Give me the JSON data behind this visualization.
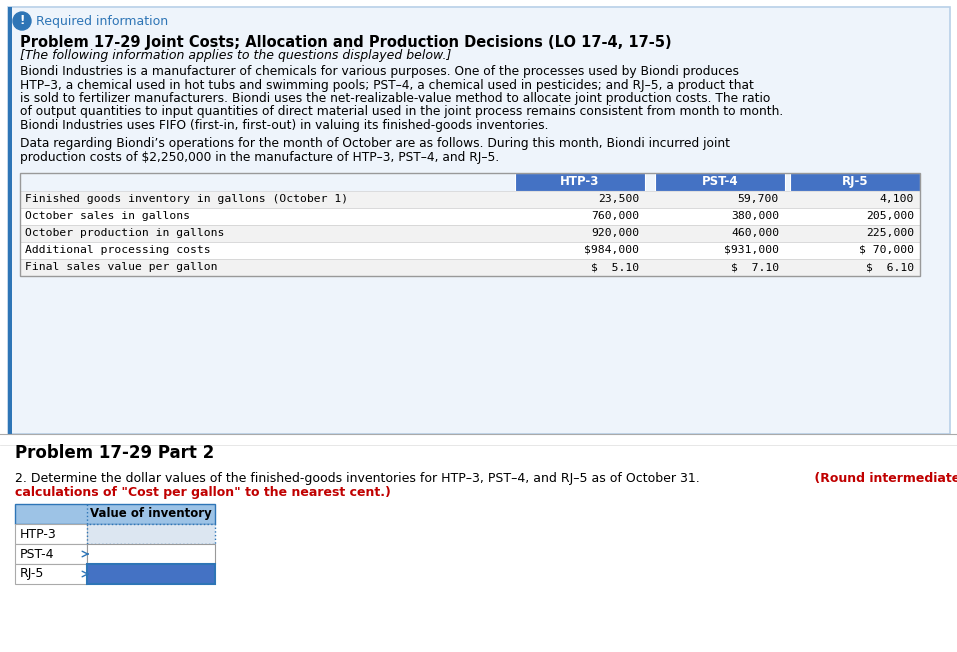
{
  "bg_color": "#ffffff",
  "top_panel_bg": "#eef4fb",
  "top_panel_border": "#2e75b6",
  "required_info_text": "Required information",
  "title_text": "Problem 17-29 Joint Costs; Allocation and Production Decisions (LO 17-4, 17-5)",
  "subtitle_text": "[The following information applies to the questions displayed below.]",
  "body_paragraph1_lines": [
    "Biondi Industries is a manufacturer of chemicals for various purposes. One of the processes used by Biondi produces",
    "HTP–3, a chemical used in hot tubs and swimming pools; PST–4, a chemical used in pesticides; and RJ–5, a product that",
    "is sold to fertilizer manufacturers. Biondi uses the net-realizable-value method to allocate joint production costs. The ratio",
    "of output quantities to input quantities of direct material used in the joint process remains consistent from month to month.",
    "Biondi Industries uses FIFO (first-in, first-out) in valuing its finished-goods inventories."
  ],
  "body_paragraph2_lines": [
    "Data regarding Biondi’s operations for the month of October are as follows. During this month, Biondi incurred joint",
    "production costs of $2,250,000 in the manufacture of HTP–3, PST–4, and RJ–5."
  ],
  "table_col_headers": [
    "HTP-3",
    "PST-4",
    "RJ-5"
  ],
  "table_rows": [
    [
      "Finished goods inventory in gallons (October 1)",
      "23,500",
      "59,700",
      "4,100"
    ],
    [
      "October sales in gallons",
      "760,000",
      "380,000",
      "205,000"
    ],
    [
      "October production in gallons",
      "920,000",
      "460,000",
      "225,000"
    ],
    [
      "Additional processing costs",
      "$984,000",
      "$931,000",
      "$ 70,000"
    ],
    [
      "Final sales value per gallon",
      "$  5.10",
      "$  7.10",
      "$  6.10"
    ]
  ],
  "part2_title": "Problem 17-29 Part 2",
  "question_black": "2. Determine the dollar values of the finished-goods inventories for HTP–3, PST–4, and RJ–5 as of October 31.",
  "question_red_line1": "(Round intermediate",
  "question_red_line2": "calculations of \"Cost per gallon\" to the nearest cent.)",
  "inv_table_header": "Value of inventory",
  "inv_rows": [
    "HTP-3",
    "PST-4",
    "RJ-5"
  ],
  "color_blue_dark": "#1f4e79",
  "color_blue_med": "#2e75b6",
  "color_blue_light": "#9dc3e6",
  "color_blue_header": "#4472c4",
  "color_blue_fill": "#4472c4",
  "color_blue_pale": "#dce6f1",
  "color_red": "#c00000",
  "color_body": "#000000",
  "color_required": "#2e75b6",
  "color_table_row_alt": "#f2f2f2",
  "color_table_row_norm": "#ffffff",
  "color_table_border": "#999999"
}
